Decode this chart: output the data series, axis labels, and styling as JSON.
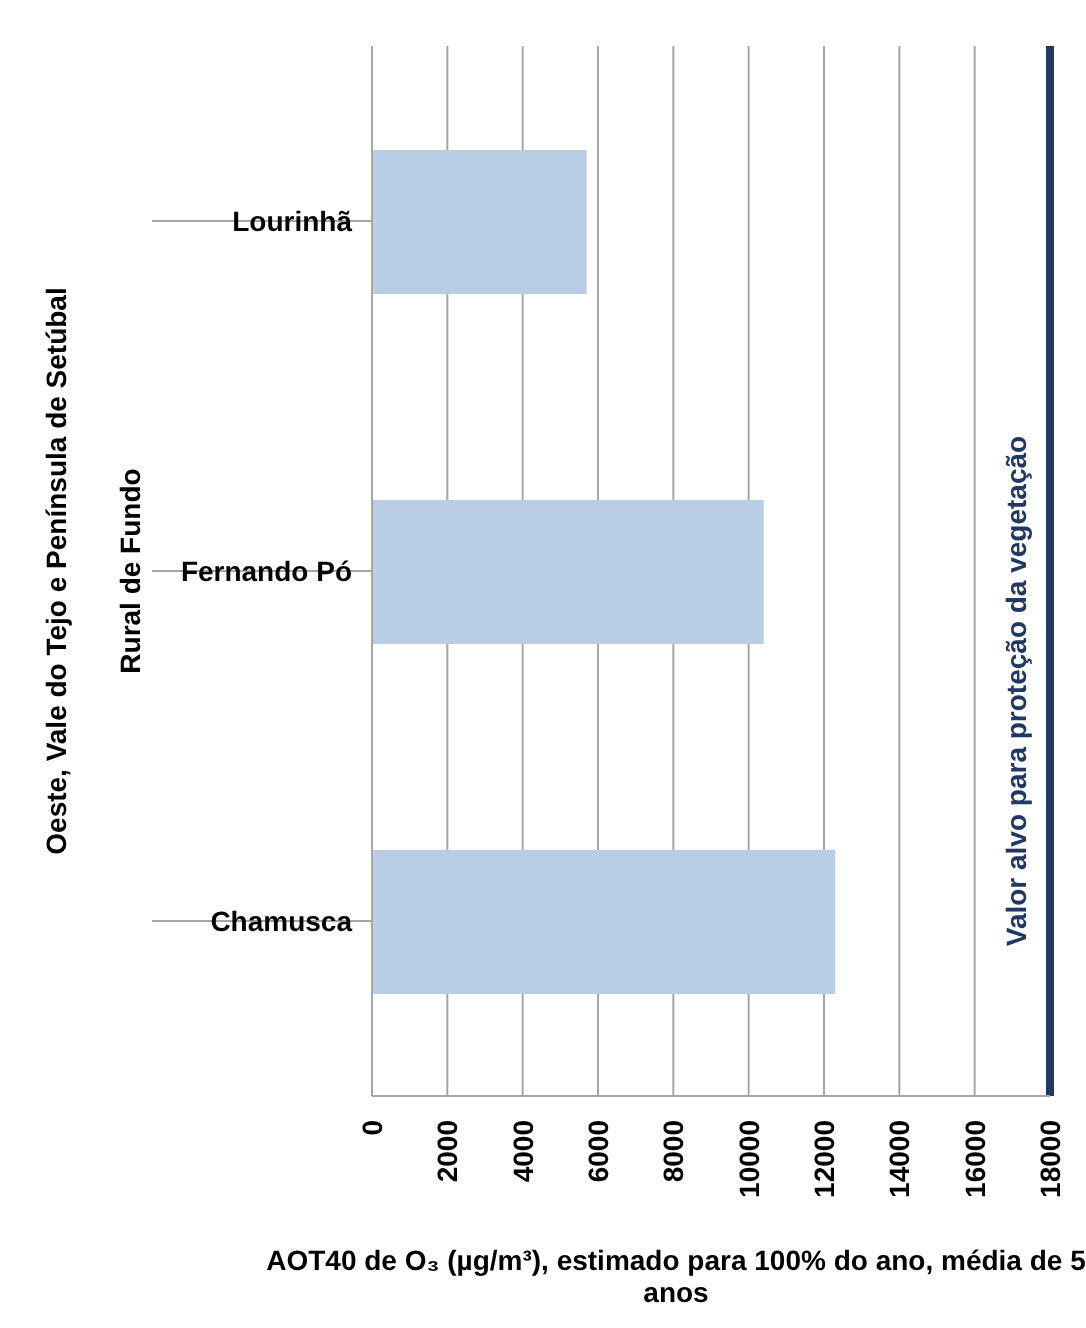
{
  "chart_data": {
    "type": "bar",
    "orientation": "horizontal",
    "categories": [
      "Lourinhã",
      "Fernando Pó",
      "Chamusca"
    ],
    "values": [
      5700,
      10400,
      12300
    ],
    "color": "#b9cde5",
    "xlim": [
      0,
      18000
    ],
    "xticks": [
      0,
      2000,
      4000,
      6000,
      8000,
      10000,
      12000,
      14000,
      16000,
      18000
    ],
    "grid": "x",
    "xlabel": "AOT40 de O₃  (µg/m³), estimado para 100% do ano, média de 5 anos",
    "ref_lines": [
      {
        "axis": "x",
        "value": 18000,
        "label": "Valor alvo para proteção da vegetação",
        "color": "#1f3864"
      }
    ],
    "annotations": [
      "Rural de Fundo",
      "Oeste, Vale do Tejo e Península de Setúbal"
    ]
  }
}
